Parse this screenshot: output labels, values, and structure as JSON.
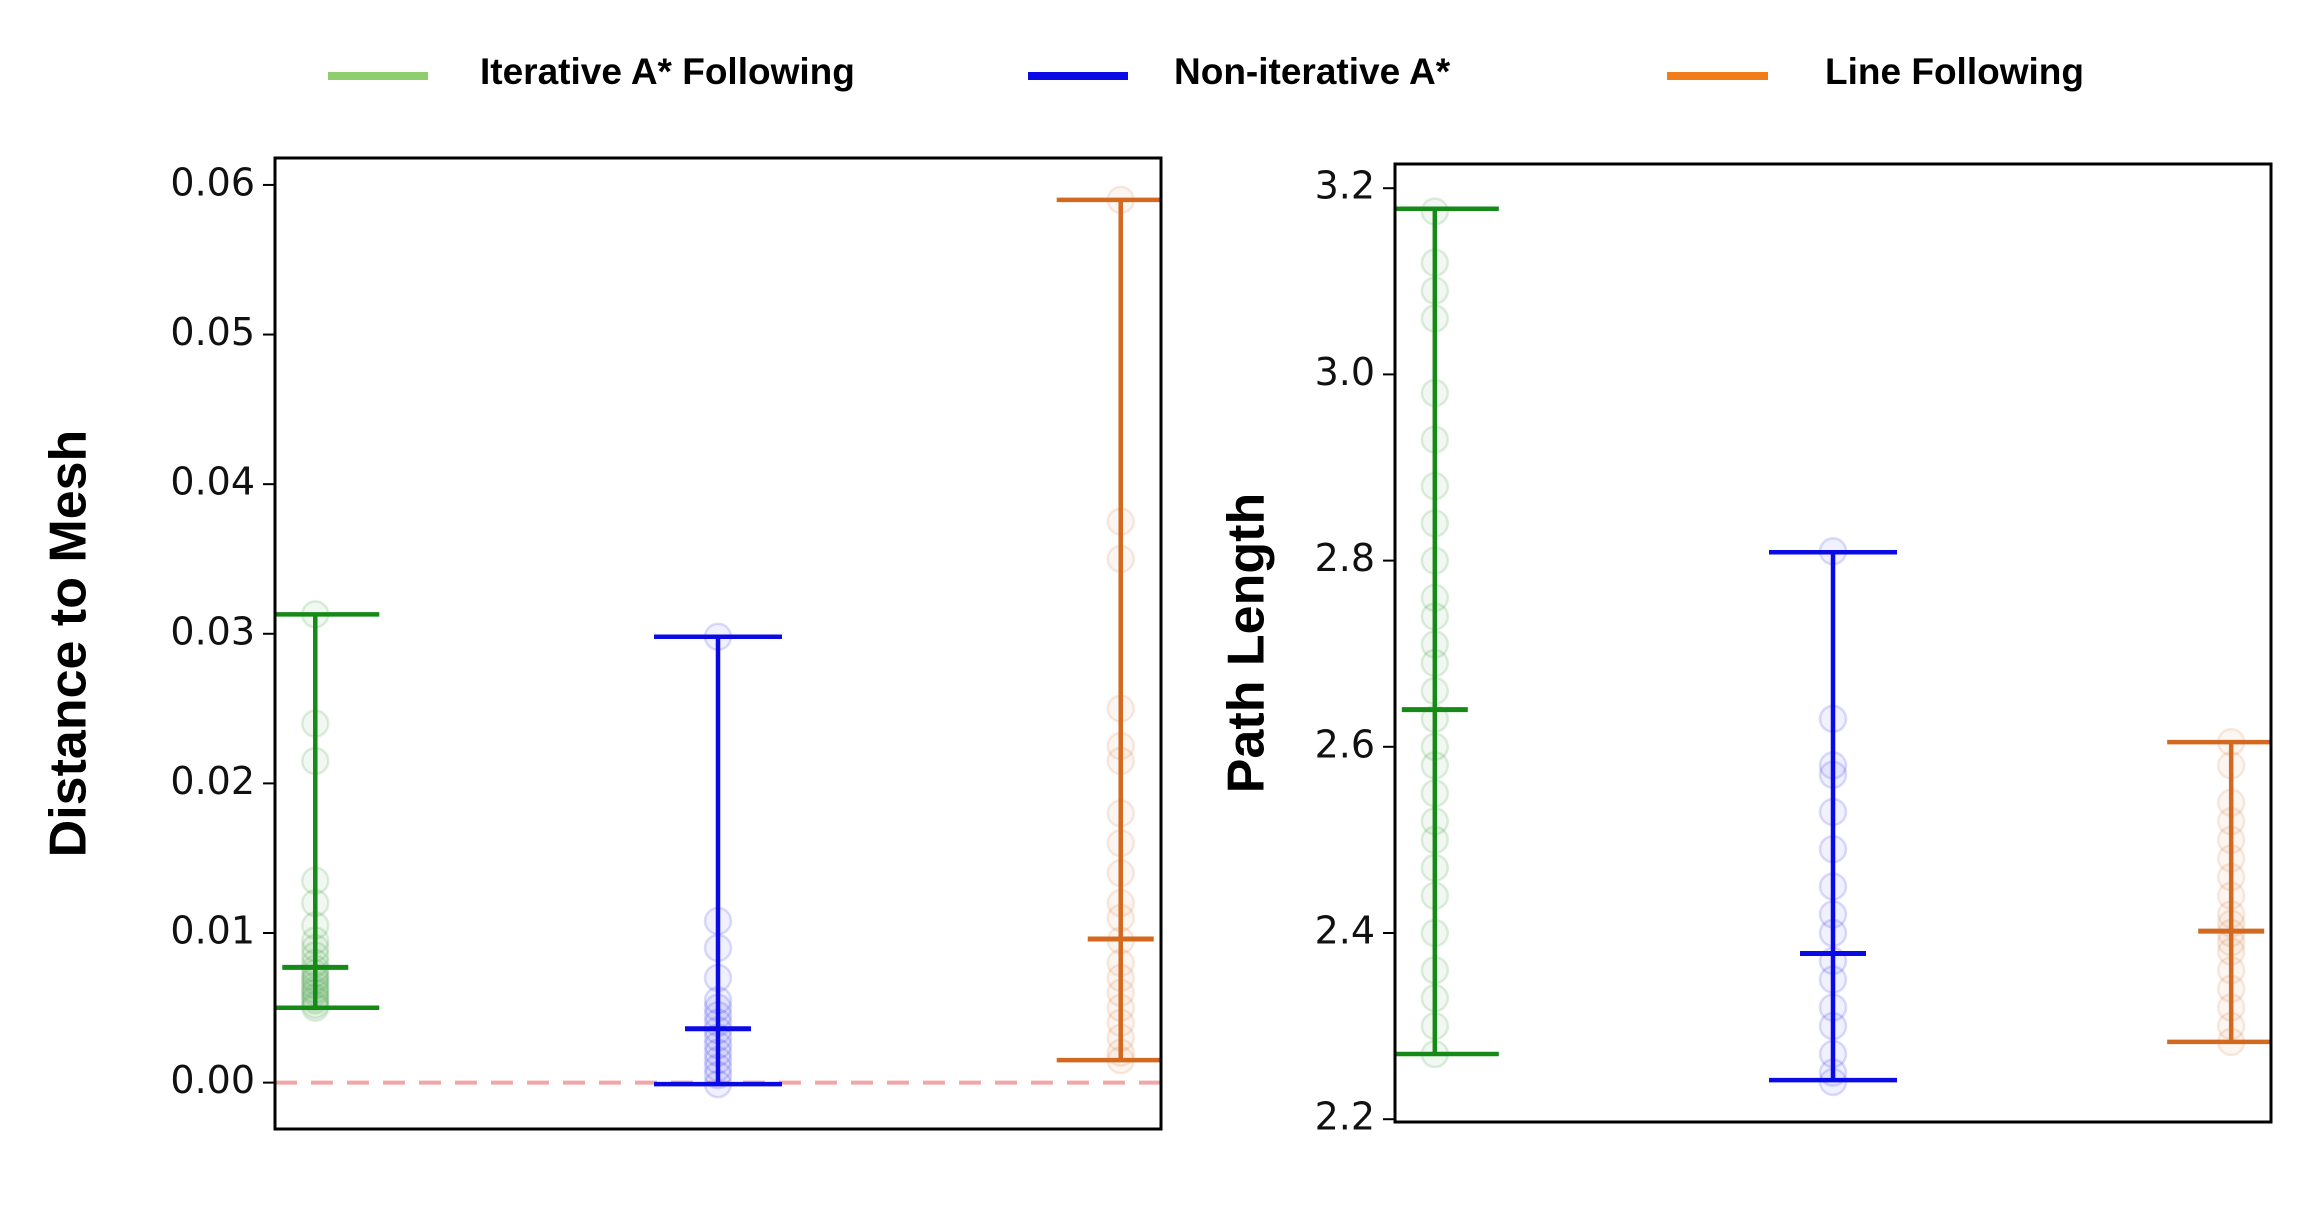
{
  "legend": [
    {
      "name": "Iterative A* Following",
      "color": "#8fce6e"
    },
    {
      "name": "Non-iterative A*",
      "color": "#0a0ae6"
    },
    {
      "name": "Line Following",
      "color": "#f07d1a"
    }
  ],
  "chart_data": [
    {
      "type": "errorbar",
      "ylabel": "Distance to Mesh",
      "ylim": [
        -0.0031,
        0.0618
      ],
      "yticks": [
        {
          "value": 0,
          "label": "0.00"
        },
        {
          "value": 0.01,
          "label": "0.01"
        },
        {
          "value": 0.02,
          "label": "0.02"
        },
        {
          "value": 0.03,
          "label": "0.03"
        },
        {
          "value": 0.04,
          "label": "0.04"
        },
        {
          "value": 0.05,
          "label": "0.05"
        },
        {
          "value": 0.06,
          "label": "0.06"
        }
      ],
      "hline": {
        "value": 0,
        "color": "#f4a5a5"
      },
      "series": [
        {
          "color": "#168a16",
          "min": 0.005,
          "max": 0.0313,
          "mean": 0.0077,
          "values": [
            0.005,
            0.0052,
            0.0055,
            0.0057,
            0.006,
            0.0062,
            0.0065,
            0.0068,
            0.007,
            0.0073,
            0.0076,
            0.008,
            0.0085,
            0.009,
            0.0095,
            0.0105,
            0.012,
            0.0135,
            0.0215,
            0.024,
            0.0313
          ]
        },
        {
          "color": "#0a0ae6",
          "min": -0.0001,
          "max": 0.0298,
          "mean": 0.0036,
          "values": [
            -0.0001,
            0.0005,
            0.001,
            0.0015,
            0.002,
            0.0025,
            0.003,
            0.0035,
            0.004,
            0.0045,
            0.005,
            0.0055,
            0.007,
            0.009,
            0.0108,
            0.0298
          ]
        },
        {
          "color": "#d2691e",
          "min": 0.0015,
          "max": 0.059,
          "mean": 0.0096,
          "values": [
            0.0015,
            0.002,
            0.003,
            0.004,
            0.005,
            0.006,
            0.007,
            0.008,
            0.0095,
            0.011,
            0.012,
            0.014,
            0.016,
            0.018,
            0.0215,
            0.0225,
            0.025,
            0.035,
            0.0375,
            0.059
          ]
        }
      ]
    },
    {
      "type": "errorbar",
      "ylabel": "Path Length",
      "ylim": [
        2.197,
        3.226
      ],
      "yticks": [
        {
          "value": 2.2,
          "label": "2.2"
        },
        {
          "value": 2.4,
          "label": "2.4"
        },
        {
          "value": 2.6,
          "label": "2.6"
        },
        {
          "value": 2.8,
          "label": "2.8"
        },
        {
          "value": 3,
          "label": "3.0"
        },
        {
          "value": 3.2,
          "label": "3.2"
        }
      ],
      "series": [
        {
          "color": "#168a16",
          "min": 2.27,
          "max": 3.178,
          "mean": 2.64,
          "values": [
            2.27,
            2.3,
            2.33,
            2.36,
            2.4,
            2.44,
            2.47,
            2.5,
            2.52,
            2.55,
            2.58,
            2.6,
            2.63,
            2.66,
            2.69,
            2.71,
            2.74,
            2.76,
            2.8,
            2.84,
            2.88,
            2.93,
            2.98,
            3.06,
            3.09,
            3.12,
            3.175
          ]
        },
        {
          "color": "#0a0ae6",
          "min": 2.242,
          "max": 2.809,
          "mean": 2.378,
          "values": [
            2.24,
            2.25,
            2.27,
            2.3,
            2.32,
            2.35,
            2.37,
            2.4,
            2.42,
            2.45,
            2.49,
            2.53,
            2.57,
            2.58,
            2.63,
            2.81
          ]
        },
        {
          "color": "#d2691e",
          "min": 2.283,
          "max": 2.605,
          "mean": 2.402,
          "values": [
            2.283,
            2.3,
            2.32,
            2.34,
            2.36,
            2.38,
            2.39,
            2.4,
            2.41,
            2.42,
            2.44,
            2.46,
            2.48,
            2.5,
            2.52,
            2.54,
            2.58,
            2.605
          ]
        }
      ]
    }
  ]
}
